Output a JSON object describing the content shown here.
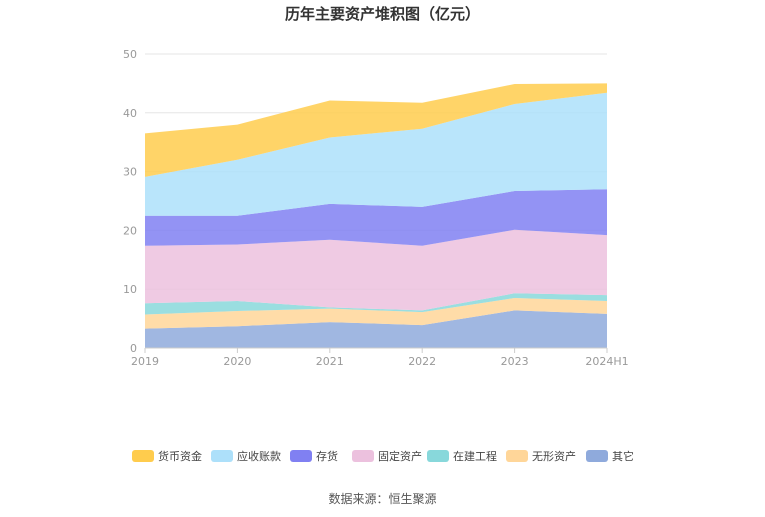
{
  "chart_data": {
    "type": "area",
    "stacked": true,
    "title": "历年主要资产堆积图（亿元）",
    "categories": [
      "2019",
      "2020",
      "2021",
      "2022",
      "2023",
      "2024H1"
    ],
    "ylim": [
      0,
      50
    ],
    "yticks": [
      "0",
      "10",
      "20",
      "30",
      "40",
      "50"
    ],
    "grid": true,
    "legend_position": "bottom",
    "series": [
      {
        "name": "其它",
        "color": "#8FAADC",
        "values": [
          3.3,
          3.7,
          4.4,
          3.9,
          6.4,
          5.8
        ]
      },
      {
        "name": "无形资产",
        "color": "#FFD699",
        "values": [
          2.4,
          2.6,
          2.3,
          2.2,
          2.1,
          2.2
        ]
      },
      {
        "name": "在建工程",
        "color": "#88D8DB",
        "values": [
          1.9,
          1.7,
          0.2,
          0.3,
          0.8,
          1.0
        ]
      },
      {
        "name": "固定资产",
        "color": "#ECC1DE",
        "values": [
          9.8,
          9.6,
          11.5,
          11.0,
          10.8,
          10.2
        ]
      },
      {
        "name": "存货",
        "color": "#8080F2",
        "values": [
          5.1,
          4.9,
          6.1,
          6.6,
          6.6,
          7.8
        ]
      },
      {
        "name": "应收账款",
        "color": "#ADE0FA",
        "values": [
          6.6,
          9.5,
          11.3,
          13.3,
          14.8,
          16.4
        ]
      },
      {
        "name": "货币资金",
        "color": "#FFCC4D",
        "values": [
          7.4,
          6.0,
          6.3,
          4.4,
          3.4,
          1.6
        ]
      }
    ],
    "legend_order": [
      "货币资金",
      "应收账款",
      "存货",
      "固定资产",
      "在建工程",
      "无形资产",
      "其它"
    ]
  },
  "source": "数据来源：恒生聚源"
}
